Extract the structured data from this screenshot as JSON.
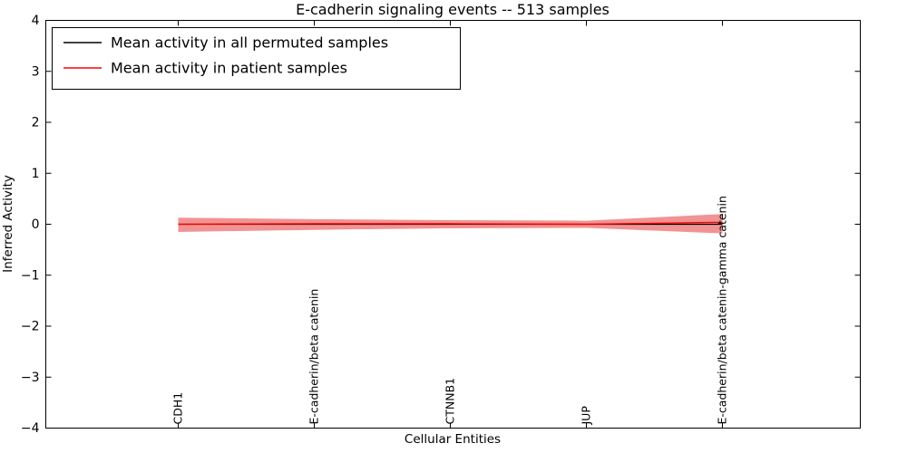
{
  "figure": {
    "title": "E-cadherin signaling events -- 513 samples",
    "xlabel": "Cellular Entities",
    "ylabel": "Inferred Activity",
    "background": "#ffffff"
  },
  "legend": {
    "position": "upper left",
    "items": [
      {
        "label": "Mean activity in all permuted samples",
        "color": "#000000"
      },
      {
        "label": "Mean activity in patient samples",
        "color": "#ff0000"
      }
    ]
  },
  "chart_data": {
    "type": "line",
    "title": "E-cadherin signaling events -- 513 samples",
    "xlabel": "Cellular Entities",
    "ylabel": "Inferred Activity",
    "ylim": [
      -4,
      4
    ],
    "yticks": [
      4,
      3,
      2,
      1,
      0,
      -1,
      -2,
      -3,
      -4
    ],
    "grid": false,
    "legend_position": "upper left",
    "categories": [
      "CDH1",
      "E-cadherin/beta catenin",
      "CTNNB1",
      "JUP",
      "E-cadherin/beta catenin-gamma catenin"
    ],
    "series": [
      {
        "name": "Mean activity in all permuted samples",
        "color": "#000000",
        "values": [
          0.0,
          0.0,
          0.0,
          0.0,
          0.0
        ]
      },
      {
        "name": "Mean activity in patient samples",
        "color": "#ff0000",
        "values": [
          0.0,
          0.01,
          0.01,
          0.0,
          0.04
        ]
      }
    ],
    "band": {
      "name": "patient activity spread",
      "color": "#f08080",
      "opacity": 0.85,
      "upper": [
        0.13,
        0.1,
        0.08,
        0.07,
        0.2
      ],
      "lower": [
        -0.15,
        -0.11,
        -0.08,
        -0.07,
        -0.18
      ]
    }
  }
}
